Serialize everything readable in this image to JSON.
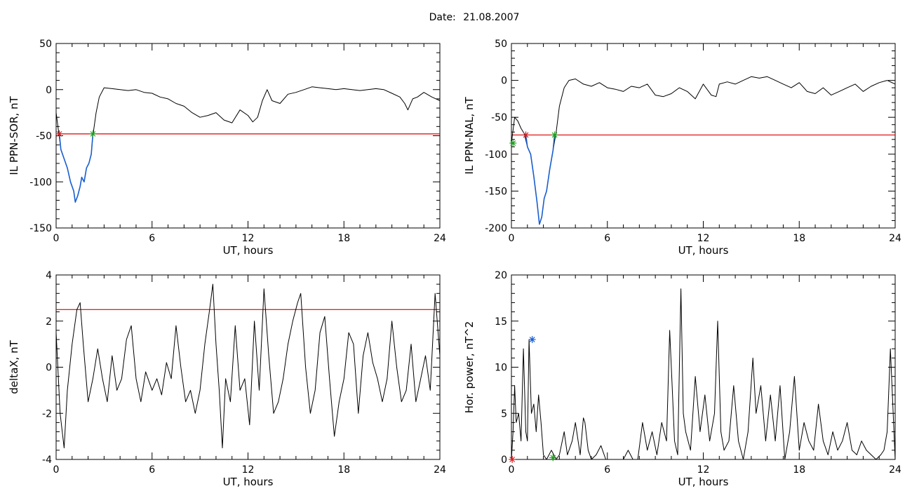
{
  "figure": {
    "date_label": "Date:",
    "date_value": "21.08.2007"
  },
  "chart_data": [
    {
      "type": "line",
      "title": "",
      "xlabel": "UT, hours",
      "ylabel": "IL PPN-SOR, nT",
      "xlim": [
        0,
        24
      ],
      "ylim": [
        -150,
        50
      ],
      "xticks": [
        0,
        6,
        12,
        18,
        24
      ],
      "yticks": [
        -150,
        -100,
        -50,
        0,
        50
      ],
      "threshold": {
        "y": -48,
        "color": "#e00000"
      },
      "series": [
        {
          "color": "#000000",
          "x": [
            0,
            0.15,
            0.3,
            0.5,
            0.7,
            0.9,
            1.1,
            1.2,
            1.35,
            1.5,
            1.6,
            1.75,
            1.9,
            2.05,
            2.2,
            2.3,
            2.5,
            2.7,
            3.0,
            3.5,
            4.0,
            4.5,
            5.0,
            5.5,
            6.0,
            6.5,
            7.0,
            7.5,
            8.0,
            8.5,
            9.0,
            9.5,
            10.0,
            10.5,
            11.0,
            11.5,
            12.0,
            12.3,
            12.6,
            12.9,
            13.2,
            13.5,
            14.0,
            14.5,
            15.0,
            15.5,
            16.0,
            16.5,
            17.0,
            17.5,
            18.0,
            18.5,
            19.0,
            19.5,
            20.0,
            20.5,
            21.0,
            21.5,
            21.8,
            22.0,
            22.3,
            22.6,
            23.0,
            23.5,
            24.0
          ],
          "y": [
            -25,
            -45,
            -65,
            -75,
            -85,
            -100,
            -110,
            -122,
            -115,
            -105,
            -95,
            -100,
            -85,
            -80,
            -70,
            -50,
            -25,
            -8,
            2,
            1,
            0,
            -1,
            0,
            -3,
            -4,
            -8,
            -10,
            -15,
            -18,
            -25,
            -30,
            -28,
            -25,
            -33,
            -36,
            -22,
            -28,
            -35,
            -30,
            -12,
            0,
            -12,
            -15,
            -5,
            -3,
            0,
            3,
            2,
            1,
            0,
            1,
            0,
            -1,
            0,
            1,
            0,
            -4,
            -8,
            -15,
            -22,
            -10,
            -8,
            -3,
            -8,
            -12
          ]
        },
        {
          "color": "#1a5fd0",
          "x": [
            0.2,
            0.3,
            0.5,
            0.7,
            0.9,
            1.1,
            1.2,
            1.35,
            1.5,
            1.6,
            1.75,
            1.9,
            2.05,
            2.2,
            2.3
          ],
          "y": [
            -48,
            -65,
            -75,
            -85,
            -100,
            -110,
            -122,
            -115,
            -105,
            -95,
            -100,
            -85,
            -80,
            -70,
            -48
          ]
        }
      ],
      "markers": [
        {
          "x": 0.2,
          "y": -48,
          "color": "#d02020"
        },
        {
          "x": 2.3,
          "y": -48,
          "color": "#20a020"
        }
      ]
    },
    {
      "type": "line",
      "title": "",
      "xlabel": "UT, hours",
      "ylabel": "IL PPN-NAL, nT",
      "xlim": [
        0,
        24
      ],
      "ylim": [
        -200,
        50
      ],
      "xticks": [
        0,
        6,
        12,
        18,
        24
      ],
      "yticks": [
        -200,
        -150,
        -100,
        -50,
        0,
        50
      ],
      "threshold": {
        "y": -74,
        "color": "#e00000"
      },
      "series": [
        {
          "color": "#000000",
          "x": [
            0,
            0.2,
            0.4,
            0.6,
            0.8,
            1.0,
            1.2,
            1.4,
            1.6,
            1.75,
            1.9,
            2.05,
            2.2,
            2.4,
            2.6,
            2.8,
            3.0,
            3.3,
            3.6,
            4.0,
            4.5,
            5.0,
            5.5,
            6.0,
            6.5,
            7.0,
            7.5,
            8.0,
            8.5,
            9.0,
            9.5,
            10.0,
            10.5,
            11.0,
            11.5,
            12.0,
            12.5,
            12.8,
            13.0,
            13.5,
            14.0,
            14.5,
            15.0,
            15.5,
            16.0,
            16.5,
            17.0,
            17.5,
            18.0,
            18.5,
            19.0,
            19.5,
            20.0,
            20.5,
            21.0,
            21.5,
            22.0,
            22.5,
            23.0,
            23.5,
            24.0
          ],
          "y": [
            -85,
            -50,
            -55,
            -65,
            -72,
            -90,
            -100,
            -130,
            -165,
            -195,
            -185,
            -160,
            -150,
            -120,
            -95,
            -70,
            -35,
            -10,
            0,
            2,
            -5,
            -8,
            -3,
            -10,
            -12,
            -15,
            -8,
            -10,
            -5,
            -20,
            -22,
            -18,
            -10,
            -15,
            -25,
            -5,
            -20,
            -22,
            -5,
            -2,
            -5,
            0,
            5,
            3,
            5,
            0,
            -5,
            -10,
            -3,
            -15,
            -18,
            -10,
            -20,
            -15,
            -10,
            -5,
            -15,
            -8,
            -3,
            0,
            -5
          ]
        },
        {
          "color": "#1a5fd0",
          "x": [
            0.9,
            1.0,
            1.2,
            1.4,
            1.6,
            1.75,
            1.9,
            2.05,
            2.2,
            2.4,
            2.6,
            2.7
          ],
          "y": [
            -74,
            -90,
            -100,
            -130,
            -165,
            -195,
            -185,
            -160,
            -150,
            -120,
            -95,
            -74
          ]
        }
      ],
      "markers": [
        {
          "x": 0.1,
          "y": -85,
          "color": "#20a020"
        },
        {
          "x": 0.9,
          "y": -74,
          "color": "#d02020"
        },
        {
          "x": 2.7,
          "y": -74,
          "color": "#20a020"
        }
      ]
    },
    {
      "type": "line",
      "title": "",
      "xlabel": "UT, hours",
      "ylabel": "deltaX, nT",
      "xlim": [
        0,
        24
      ],
      "ylim": [
        -4,
        4
      ],
      "xticks": [
        0,
        6,
        12,
        18,
        24
      ],
      "yticks": [
        -4,
        -2,
        0,
        2,
        4
      ],
      "threshold": {
        "y": 2.5,
        "color": "#e00000"
      },
      "series": [
        {
          "color": "#000000",
          "x": [
            0,
            0.25,
            0.5,
            0.7,
            1.0,
            1.3,
            1.5,
            1.7,
            2.0,
            2.3,
            2.6,
            2.9,
            3.2,
            3.5,
            3.8,
            4.1,
            4.4,
            4.7,
            5.0,
            5.3,
            5.6,
            6.0,
            6.3,
            6.6,
            6.9,
            7.2,
            7.5,
            7.8,
            8.1,
            8.4,
            8.7,
            9.0,
            9.3,
            9.6,
            9.8,
            10.0,
            10.2,
            10.4,
            10.6,
            10.9,
            11.2,
            11.5,
            11.8,
            12.1,
            12.4,
            12.7,
            13.0,
            13.3,
            13.6,
            13.9,
            14.2,
            14.5,
            14.8,
            15.1,
            15.3,
            15.6,
            15.9,
            16.2,
            16.5,
            16.8,
            17.1,
            17.4,
            17.7,
            18.0,
            18.3,
            18.6,
            18.9,
            19.2,
            19.5,
            19.8,
            20.1,
            20.4,
            20.7,
            21.0,
            21.3,
            21.6,
            21.9,
            22.2,
            22.5,
            22.8,
            23.1,
            23.4,
            23.7,
            24.0
          ],
          "y": [
            1.5,
            -2,
            -3.5,
            -1,
            1,
            2.5,
            2.8,
            1,
            -1.5,
            -0.5,
            0.8,
            -0.5,
            -1.5,
            0.5,
            -1,
            -0.5,
            1.2,
            1.8,
            -0.5,
            -1.5,
            -0.2,
            -1,
            -0.5,
            -1.2,
            0.2,
            -0.5,
            1.8,
            0,
            -1.5,
            -1,
            -2,
            -1,
            1,
            2.5,
            3.6,
            1,
            -1,
            -3.5,
            -0.5,
            -1.5,
            1.8,
            -1,
            -0.5,
            -2.5,
            2,
            -1,
            3.4,
            0.5,
            -2,
            -1.5,
            -0.5,
            1,
            2,
            2.8,
            3.2,
            0,
            -2,
            -1,
            1.5,
            2.2,
            -0.5,
            -3,
            -1.5,
            -0.5,
            1.5,
            1,
            -2,
            0.5,
            1.5,
            0.2,
            -0.5,
            -1.5,
            -0.5,
            2,
            0,
            -1.5,
            -1,
            1,
            -1.5,
            -0.5,
            0.5,
            -1,
            3.2,
            0.5
          ]
        }
      ],
      "markers": []
    },
    {
      "type": "line",
      "title": "",
      "xlabel": "UT, hours",
      "ylabel": "Hor. power, nT^2",
      "xlim": [
        0,
        24
      ],
      "ylim": [
        0,
        20
      ],
      "xticks": [
        0,
        6,
        12,
        18,
        24
      ],
      "yticks": [
        0,
        5,
        10,
        15,
        20
      ],
      "threshold": null,
      "series": [
        {
          "color": "#000000",
          "x": [
            0,
            0.1,
            0.2,
            0.3,
            0.45,
            0.6,
            0.75,
            0.9,
            1.0,
            1.1,
            1.25,
            1.4,
            1.55,
            1.7,
            1.85,
            2.0,
            2.2,
            2.5,
            2.8,
            3.0,
            3.3,
            3.5,
            3.8,
            4.0,
            4.3,
            4.5,
            4.6,
            4.8,
            5.0,
            5.3,
            5.6,
            5.9,
            6.2,
            6.5,
            6.8,
            7.0,
            7.3,
            7.6,
            7.9,
            8.2,
            8.5,
            8.8,
            9.1,
            9.4,
            9.7,
            9.9,
            10.05,
            10.2,
            10.4,
            10.6,
            10.75,
            10.9,
            11.2,
            11.5,
            11.8,
            12.1,
            12.4,
            12.7,
            12.9,
            13.1,
            13.3,
            13.6,
            13.9,
            14.2,
            14.5,
            14.8,
            15.1,
            15.3,
            15.6,
            15.9,
            16.2,
            16.5,
            16.8,
            17.1,
            17.4,
            17.7,
            18.0,
            18.3,
            18.6,
            18.9,
            19.2,
            19.5,
            19.8,
            20.1,
            20.4,
            20.7,
            21.0,
            21.3,
            21.6,
            21.9,
            22.2,
            22.5,
            22.8,
            23.1,
            23.3,
            23.5,
            23.7,
            24.0
          ],
          "y": [
            0,
            3,
            8,
            4,
            5,
            2,
            12,
            3,
            2,
            13,
            5,
            6,
            3,
            7,
            4,
            0.5,
            0,
            1,
            0,
            0.5,
            3,
            0.5,
            2,
            4,
            0.5,
            4.5,
            4,
            1,
            0,
            0.5,
            1.5,
            0,
            0,
            0,
            0,
            0,
            1,
            0,
            0,
            4,
            1,
            3,
            0.5,
            4,
            2,
            14,
            8,
            2,
            0.5,
            18.5,
            5,
            3,
            1,
            9,
            3,
            7,
            2,
            5,
            15,
            3,
            1,
            2,
            8,
            2,
            0,
            3,
            11,
            5,
            8,
            2,
            7,
            2,
            8,
            0,
            3,
            9,
            1,
            4,
            2,
            1,
            6,
            2,
            0.5,
            3,
            1,
            2,
            4,
            1,
            0.5,
            2,
            1,
            0.5,
            0,
            0.5,
            1,
            3,
            12,
            0
          ]
        }
      ],
      "markers": [
        {
          "x": 0.05,
          "y": 0,
          "color": "#d02020"
        },
        {
          "x": 1.3,
          "y": 13,
          "color": "#1a5fd0"
        },
        {
          "x": 2.6,
          "y": 0.2,
          "color": "#20a020"
        }
      ]
    }
  ]
}
